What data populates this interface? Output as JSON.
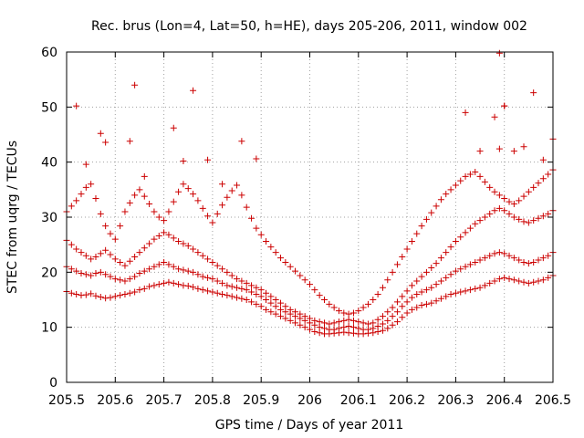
{
  "chart_data": {
    "type": "scatter",
    "title": "Rec. brus (Lon=4, Lat=50, h=HE), days 205-206, 2011, window 002",
    "xlabel": "GPS time / Days of year 2011",
    "ylabel": "STEC from uqrg / TECUs",
    "xlim": [
      205.5,
      206.5
    ],
    "ylim": [
      0,
      60
    ],
    "xticks": [
      205.5,
      205.6,
      205.7,
      205.8,
      205.9,
      206,
      206.1,
      206.2,
      206.3,
      206.4,
      206.5
    ],
    "xtick_labels": [
      "205.5",
      "205.6",
      "205.7",
      "205.8",
      "205.9",
      "206",
      "206.1",
      "206.2",
      "206.3",
      "206.4",
      "206.5"
    ],
    "yticks": [
      0,
      10,
      20,
      30,
      40,
      50,
      60
    ],
    "ytick_labels": [
      "0",
      "10",
      "20",
      "30",
      "40",
      "50",
      "60"
    ],
    "grid": true,
    "marker": "plus",
    "color": "#cc0000",
    "series": [
      {
        "x": [
          205.5,
          205.51,
          205.52,
          205.53,
          205.54,
          205.55,
          205.56,
          205.57,
          205.58,
          205.59,
          205.6,
          205.61,
          205.62,
          205.63,
          205.64,
          205.65,
          205.66,
          205.67,
          205.68,
          205.69,
          205.7,
          205.71,
          205.72,
          205.73,
          205.74,
          205.75,
          205.76,
          205.77,
          205.78,
          205.79,
          205.8,
          205.81,
          205.82,
          205.83,
          205.84,
          205.85,
          205.86,
          205.87,
          205.88,
          205.89,
          205.9,
          205.91,
          205.92,
          205.93,
          205.94,
          205.95,
          205.96,
          205.97,
          205.98,
          205.99,
          206.0,
          206.01,
          206.02,
          206.03,
          206.04,
          206.05,
          206.06,
          206.07,
          206.08,
          206.09,
          206.1,
          206.11,
          206.12,
          206.13,
          206.14,
          206.15,
          206.16,
          206.17,
          206.18,
          206.19,
          206.2,
          206.21,
          206.22,
          206.23,
          206.24,
          206.25,
          206.26,
          206.27,
          206.28,
          206.29,
          206.3,
          206.31,
          206.32,
          206.33,
          206.34,
          206.35,
          206.36,
          206.37,
          206.38,
          206.39,
          206.4,
          206.41,
          206.42,
          206.43,
          206.44,
          206.45,
          206.46,
          206.47,
          206.48,
          206.49,
          206.5
        ],
        "y": [
          16.5,
          16.2,
          16.0,
          15.8,
          15.9,
          16.1,
          15.7,
          15.5,
          15.3,
          15.4,
          15.6,
          15.8,
          16.0,
          16.2,
          16.4,
          16.8,
          17.0,
          17.4,
          17.6,
          17.8,
          18.0,
          18.2,
          18.0,
          17.8,
          17.6,
          17.5,
          17.3,
          17.0,
          16.8,
          16.6,
          16.4,
          16.2,
          16.0,
          15.8,
          15.6,
          15.4,
          15.2,
          15.0,
          14.6,
          14.2,
          13.8,
          13.2,
          12.8,
          12.4,
          12.0,
          11.6,
          11.2,
          10.8,
          10.4,
          10.0,
          9.6,
          9.2,
          9.0,
          8.8,
          8.8,
          8.9,
          9.0,
          9.1,
          9.0,
          8.9,
          8.8,
          8.8,
          8.9,
          9.0,
          9.2,
          9.4,
          9.8,
          10.4,
          11.0,
          11.8,
          12.6,
          13.2,
          13.6,
          14.0,
          14.2,
          14.4,
          14.8,
          15.2,
          15.6,
          16.0,
          16.2,
          16.4,
          16.6,
          16.8,
          17.0,
          17.2,
          17.6,
          18.0,
          18.4,
          18.8,
          19.0,
          18.8,
          18.6,
          18.4,
          18.2,
          18.0,
          18.2,
          18.4,
          18.6,
          19.0,
          19.4
        ]
      },
      {
        "x": [
          205.5,
          205.51,
          205.52,
          205.53,
          205.54,
          205.55,
          205.56,
          205.57,
          205.58,
          205.59,
          205.6,
          205.61,
          205.62,
          205.63,
          205.64,
          205.65,
          205.66,
          205.67,
          205.68,
          205.69,
          205.7,
          205.71,
          205.72,
          205.73,
          205.74,
          205.75,
          205.76,
          205.77,
          205.78,
          205.79,
          205.8,
          205.81,
          205.82,
          205.83,
          205.84,
          205.85,
          205.86,
          205.87,
          205.88,
          205.89,
          205.9,
          205.91,
          205.92,
          205.93,
          205.94,
          205.95,
          205.96,
          205.97,
          205.98,
          205.99,
          206.0,
          206.01,
          206.02,
          206.03,
          206.04,
          206.05,
          206.06,
          206.07,
          206.08,
          206.09,
          206.1,
          206.11,
          206.12,
          206.13,
          206.14,
          206.15,
          206.16,
          206.17,
          206.18,
          206.19,
          206.2,
          206.21,
          206.22,
          206.23,
          206.24,
          206.25,
          206.26,
          206.27,
          206.28,
          206.29,
          206.3,
          206.31,
          206.32,
          206.33,
          206.34,
          206.35,
          206.36,
          206.37,
          206.38,
          206.39,
          206.4,
          206.41,
          206.42,
          206.43,
          206.44,
          206.45,
          206.46,
          206.47,
          206.48,
          206.49,
          206.5
        ],
        "y": [
          21.0,
          20.6,
          20.2,
          19.8,
          19.6,
          19.4,
          19.8,
          20.0,
          19.6,
          19.2,
          18.8,
          18.6,
          18.4,
          18.8,
          19.2,
          19.8,
          20.2,
          20.6,
          21.0,
          21.4,
          21.8,
          21.4,
          21.0,
          20.6,
          20.4,
          20.2,
          20.0,
          19.6,
          19.2,
          19.0,
          18.8,
          18.4,
          18.0,
          17.6,
          17.4,
          17.2,
          17.0,
          16.8,
          16.4,
          16.0,
          15.6,
          15.0,
          14.4,
          13.8,
          13.2,
          12.8,
          12.4,
          12.0,
          11.6,
          11.2,
          10.8,
          10.4,
          10.0,
          9.8,
          9.6,
          9.6,
          9.8,
          10.0,
          10.2,
          10.0,
          9.8,
          9.6,
          9.6,
          9.8,
          10.2,
          10.6,
          11.2,
          12.0,
          12.8,
          13.8,
          14.6,
          15.4,
          16.0,
          16.4,
          16.8,
          17.2,
          17.8,
          18.4,
          19.0,
          19.6,
          20.2,
          20.6,
          21.0,
          21.4,
          21.8,
          22.2,
          22.6,
          23.0,
          23.4,
          23.6,
          23.4,
          23.0,
          22.6,
          22.2,
          21.8,
          21.6,
          21.8,
          22.2,
          22.6,
          23.0,
          23.6
        ]
      },
      {
        "x": [
          205.5,
          205.51,
          205.52,
          205.53,
          205.54,
          205.55,
          205.56,
          205.57,
          205.58,
          205.59,
          205.6,
          205.61,
          205.62,
          205.63,
          205.64,
          205.65,
          205.66,
          205.67,
          205.68,
          205.69,
          205.7,
          205.71,
          205.72,
          205.73,
          205.74,
          205.75,
          205.76,
          205.77,
          205.78,
          205.79,
          205.8,
          205.81,
          205.82,
          205.83,
          205.84,
          205.85,
          205.86,
          205.87,
          205.88,
          205.89,
          205.9,
          205.91,
          205.92,
          205.93,
          205.94,
          205.95,
          205.96,
          205.97,
          205.98,
          205.99,
          206.0,
          206.01,
          206.02,
          206.03,
          206.04,
          206.05,
          206.06,
          206.07,
          206.08,
          206.09,
          206.1,
          206.11,
          206.12,
          206.13,
          206.14,
          206.15,
          206.16,
          206.17,
          206.18,
          206.19,
          206.2,
          206.21,
          206.22,
          206.23,
          206.24,
          206.25,
          206.26,
          206.27,
          206.28,
          206.29,
          206.3,
          206.31,
          206.32,
          206.33,
          206.34,
          206.35,
          206.36,
          206.37,
          206.38,
          206.39,
          206.4,
          206.41,
          206.42,
          206.43,
          206.44,
          206.45,
          206.46,
          206.47,
          206.48,
          206.49,
          206.5
        ],
        "y": [
          25.8,
          25.0,
          24.2,
          23.6,
          23.0,
          22.4,
          22.8,
          23.4,
          24.0,
          23.2,
          22.4,
          21.8,
          21.2,
          22.0,
          22.8,
          23.6,
          24.4,
          25.2,
          26.0,
          26.6,
          27.2,
          26.8,
          26.2,
          25.6,
          25.2,
          24.8,
          24.2,
          23.6,
          23.0,
          22.4,
          21.8,
          21.2,
          20.6,
          20.0,
          19.4,
          18.8,
          18.4,
          18.0,
          17.6,
          17.2,
          16.8,
          16.2,
          15.6,
          15.0,
          14.4,
          13.8,
          13.2,
          12.8,
          12.4,
          12.0,
          11.6,
          11.2,
          11.0,
          10.8,
          10.6,
          10.8,
          11.0,
          11.2,
          11.4,
          11.2,
          11.0,
          10.8,
          10.6,
          10.8,
          11.4,
          12.0,
          12.8,
          13.6,
          14.6,
          15.6,
          16.6,
          17.6,
          18.4,
          19.2,
          20.0,
          20.8,
          21.6,
          22.6,
          23.6,
          24.6,
          25.6,
          26.4,
          27.2,
          28.0,
          28.8,
          29.4,
          30.0,
          30.6,
          31.2,
          31.6,
          31.2,
          30.6,
          30.0,
          29.6,
          29.2,
          29.0,
          29.4,
          29.8,
          30.2,
          30.6,
          31.2
        ]
      },
      {
        "x": [
          205.5,
          205.51,
          205.52,
          205.53,
          205.54,
          205.55,
          205.56,
          205.57,
          205.58,
          205.59,
          205.6,
          205.61,
          205.62,
          205.63,
          205.64,
          205.65,
          205.66,
          205.67,
          205.68,
          205.69,
          205.7,
          205.71,
          205.72,
          205.73,
          205.74,
          205.75,
          205.76,
          205.77,
          205.78,
          205.79,
          205.8,
          205.81,
          205.82,
          205.83,
          205.84,
          205.85,
          205.86,
          205.87,
          205.88,
          205.89,
          205.9,
          205.91,
          205.92,
          205.93,
          205.94,
          205.95,
          205.96,
          205.97,
          205.98,
          205.99,
          206.0,
          206.01,
          206.02,
          206.03,
          206.04,
          206.05,
          206.06,
          206.07,
          206.08,
          206.09,
          206.1,
          206.11,
          206.12,
          206.13,
          206.14,
          206.15,
          206.16,
          206.17,
          206.18,
          206.19,
          206.2,
          206.21,
          206.22,
          206.23,
          206.24,
          206.25,
          206.26,
          206.27,
          206.28,
          206.29,
          206.3,
          206.31,
          206.32,
          206.33,
          206.34,
          206.35,
          206.36,
          206.37,
          206.38,
          206.39,
          206.4,
          206.41,
          206.42,
          206.43,
          206.44,
          206.45,
          206.46,
          206.47,
          206.48,
          206.49,
          206.5
        ],
        "y": [
          31.0,
          32.0,
          33.0,
          34.2,
          35.4,
          36.0,
          33.4,
          30.6,
          28.4,
          27.0,
          26.0,
          28.4,
          31.0,
          32.6,
          34.0,
          35.0,
          33.8,
          32.4,
          31.0,
          30.0,
          29.4,
          31.0,
          32.8,
          34.6,
          36.0,
          35.2,
          34.2,
          33.0,
          31.6,
          30.2,
          29.0,
          30.6,
          32.2,
          33.6,
          34.8,
          35.8,
          34.0,
          31.8,
          29.8,
          28.0,
          26.8,
          25.6,
          24.6,
          23.6,
          22.6,
          21.8,
          21.0,
          20.2,
          19.4,
          18.6,
          17.8,
          16.8,
          15.8,
          15.0,
          14.2,
          13.6,
          13.0,
          12.6,
          12.4,
          12.6,
          13.0,
          13.6,
          14.2,
          15.0,
          16.0,
          17.2,
          18.6,
          20.0,
          21.4,
          22.8,
          24.2,
          25.6,
          27.0,
          28.4,
          29.6,
          30.8,
          32.0,
          33.2,
          34.2,
          35.0,
          35.8,
          36.6,
          37.4,
          37.8,
          38.2,
          37.4,
          36.4,
          35.4,
          34.6,
          34.0,
          33.4,
          32.8,
          32.4,
          33.0,
          33.8,
          34.6,
          35.4,
          36.2,
          37.0,
          37.8,
          38.6
        ]
      },
      {
        "x": [
          205.52,
          205.54,
          205.57,
          205.58,
          205.64,
          205.66,
          205.72,
          205.74,
          205.76,
          205.79,
          205.82,
          205.86,
          205.89,
          206.32,
          206.35,
          206.38,
          206.39,
          206.4,
          206.42,
          206.44,
          206.46,
          206.48,
          206.5
        ],
        "y": [
          50.2,
          39.6,
          45.2,
          43.6,
          54.0,
          37.4,
          46.2,
          40.2,
          53.0,
          40.4,
          36.0,
          43.8,
          40.6,
          49.0,
          42.0,
          48.2,
          42.4,
          50.2,
          42.0,
          42.8,
          52.6,
          40.4,
          44.2
        ]
      },
      {
        "x": [
          205.63,
          206.39,
          206.4
        ],
        "y": [
          43.8,
          59.8,
          50.2
        ]
      }
    ]
  }
}
